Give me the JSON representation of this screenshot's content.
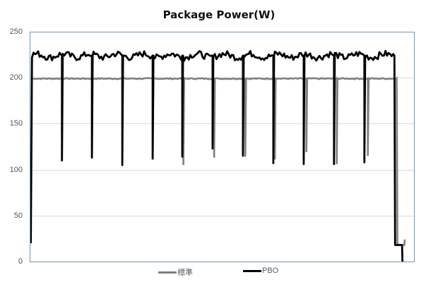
{
  "chart_data": {
    "type": "line",
    "title": "Package Power(W)",
    "xlabel": "",
    "ylabel": "",
    "ylim": [
      0,
      250
    ],
    "yticks": [
      0,
      50,
      100,
      150,
      200,
      250
    ],
    "grid": "horizontal",
    "legend_position": "bottom",
    "x_axis": "sample index (no tick labels shown)",
    "series": [
      {
        "name": "標準",
        "color": "#808080",
        "description": "Flat ~199 W plateau with short dips; drops to ~18 W at end then rises to ~24 W",
        "baseline": 199,
        "dips": [
          {
            "x_frac": 0.32,
            "min": 111
          },
          {
            "x_frac": 0.4,
            "min": 105
          },
          {
            "x_frac": 0.48,
            "min": 113
          },
          {
            "x_frac": 0.561,
            "min": 114
          },
          {
            "x_frac": 0.638,
            "min": 111
          },
          {
            "x_frac": 0.72,
            "min": 119
          },
          {
            "x_frac": 0.799,
            "min": 106
          },
          {
            "x_frac": 0.88,
            "min": 115
          }
        ],
        "start_x_frac": 0.0,
        "end_x_frac": 0.955,
        "tail": {
          "value": 18,
          "final": 24
        }
      },
      {
        "name": "PBO",
        "color": "#000000",
        "description": "Noisy ~220-230 W plateau with periodic dips; starts ~20 W, ends dropping to ~18 W then 0",
        "baseline": 224,
        "start_value": 20,
        "dips": [
          {
            "x_frac": 0.084,
            "min": 110
          },
          {
            "x_frac": 0.162,
            "min": 113
          },
          {
            "x_frac": 0.241,
            "min": 105
          },
          {
            "x_frac": 0.32,
            "min": 112
          },
          {
            "x_frac": 0.397,
            "min": 114
          },
          {
            "x_frac": 0.476,
            "min": 123
          },
          {
            "x_frac": 0.555,
            "min": 115
          },
          {
            "x_frac": 0.634,
            "min": 107
          },
          {
            "x_frac": 0.713,
            "min": 106
          },
          {
            "x_frac": 0.792,
            "min": 106
          },
          {
            "x_frac": 0.871,
            "min": 108
          }
        ],
        "end_x_frac": 0.949,
        "tail": {
          "value": 18,
          "final": 0
        }
      }
    ]
  },
  "legend": {
    "items": [
      {
        "label": "標準",
        "color": "#808080"
      },
      {
        "label": "PBO",
        "color": "#000000"
      }
    ]
  },
  "axis": {
    "y_labels": [
      "250",
      "200",
      "150",
      "100",
      "50",
      "0"
    ]
  }
}
